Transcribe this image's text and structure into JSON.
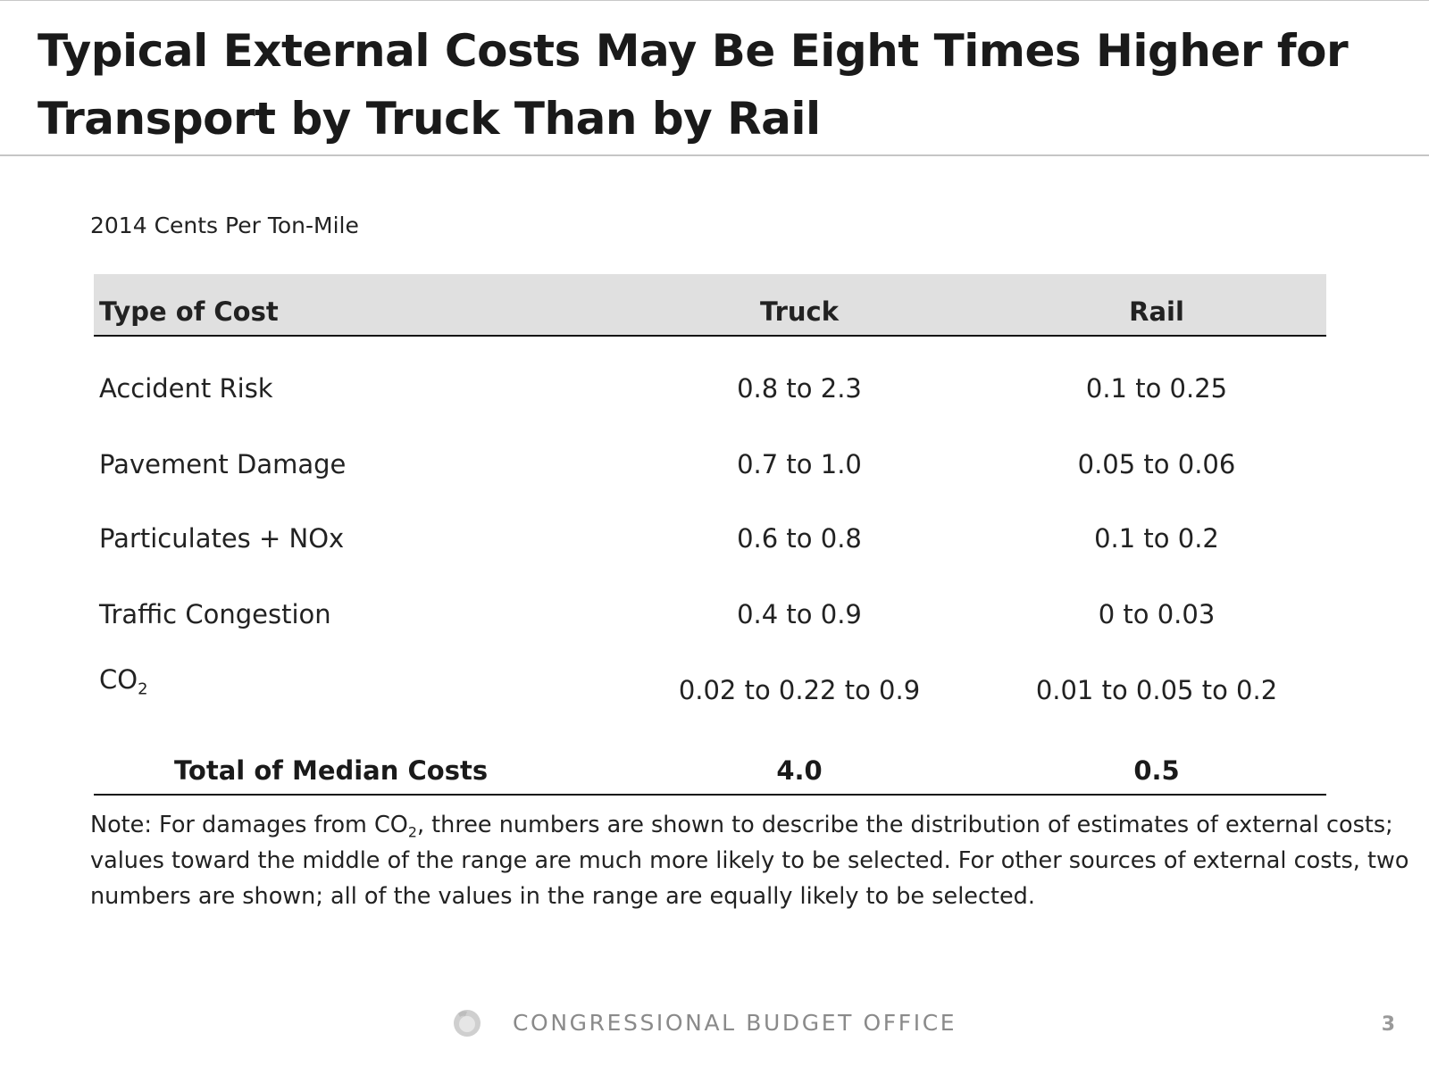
{
  "title": "Typical External Costs May Be Eight Times Higher for Transport by Truck Than by Rail",
  "units": "2014 Cents Per Ton-Mile",
  "table": {
    "headers": {
      "type": "Type of Cost",
      "truck": "Truck",
      "rail": "Rail"
    },
    "rows": [
      {
        "type": "Accident Risk",
        "truck": "0.8 to 2.3",
        "rail": "0.1 to 0.25"
      },
      {
        "type": "Pavement Damage",
        "truck": "0.7 to 1.0",
        "rail": "0.05 to 0.06"
      },
      {
        "type": "Particulates + NOx",
        "truck": "0.6 to 0.8",
        "rail": "0.1 to 0.2"
      },
      {
        "type": "Traffic Congestion",
        "truck": "0.4 to 0.9",
        "rail": "0 to 0.03"
      },
      {
        "type": "CO",
        "type_subscript": "2",
        "truck": "0.02 to 0.22 to 0.9",
        "rail": "0.01 to 0.05 to 0.2"
      }
    ],
    "total": {
      "label": "Total of Median Costs",
      "truck": "4.0",
      "rail": "0.5"
    }
  },
  "note": {
    "part1": "Note: For damages from CO",
    "subscript": "2",
    "part2": ", three numbers are shown to describe the distribution of estimates of external costs; values toward the middle of the range are much more likely to be selected. For other sources of external costs, two numbers are shown; all of the values in the range are equally likely to be selected."
  },
  "footer": {
    "logo_icon": "cbo-seal-icon",
    "organization": "CONGRESSIONAL BUDGET OFFICE",
    "page_number": "3"
  },
  "colors": {
    "header_fill": "#e0e0e0",
    "rule": "#c6c6c6",
    "footer_text": "#8a8a8a"
  }
}
